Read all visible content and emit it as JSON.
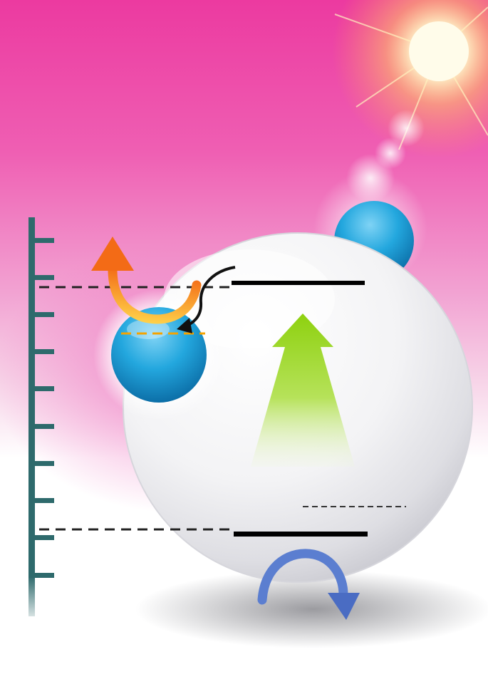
{
  "scene": {
    "type": "energy-level-diagram",
    "colors": {
      "sky_top": "#ee44a6",
      "sky_mid": "#f2a6d6",
      "sky_bottom": "#ffffff",
      "sun_core": "#fffbe6",
      "sun_glow": "#ffd56a",
      "axis": "#2e6a6c",
      "large_sphere": "#f0f0f2",
      "small_sphere": "#1fa0d8",
      "level_line": "#000000",
      "dashed_line": "#222222",
      "orange_dash": "#f5a300",
      "orange_arrow": "#f79a1c",
      "green_arrow": "#8fd11a",
      "blue_arrow": "#5f7fd0"
    },
    "icons": [
      "sun-icon",
      "energy-axis-icon",
      "large-sphere-icon",
      "small-blue-sphere-icon",
      "background-sphere-icon",
      "orange-curved-arrow-icon",
      "black-curved-arrow-icon",
      "green-up-arrow-icon",
      "blue-curved-arrow-icon"
    ],
    "axis_tick_count": 10,
    "energy_levels": [
      "upper",
      "lower"
    ]
  }
}
